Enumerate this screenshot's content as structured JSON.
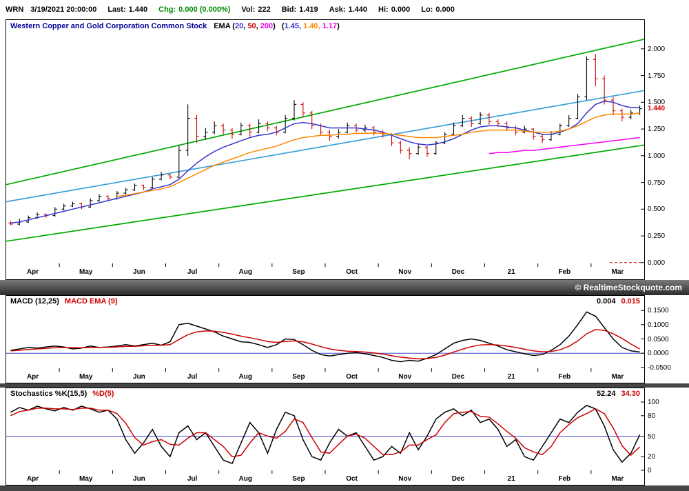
{
  "header": {
    "symbol": "WRN",
    "datetime": "3/19/2021 20:00:00",
    "fields": [
      {
        "key": "last",
        "label": "Last:",
        "value": "1.440",
        "color": "#000000"
      },
      {
        "key": "chg",
        "label": "Chg:",
        "value": "0.000 (0.000%)",
        "color": "#008800"
      },
      {
        "key": "vol",
        "label": "Vol:",
        "value": "222",
        "color": "#000000"
      },
      {
        "key": "bid",
        "label": "Bid:",
        "value": "1.419",
        "color": "#000000"
      },
      {
        "key": "ask",
        "label": "Ask:",
        "value": "1.440",
        "color": "#000000"
      },
      {
        "key": "hi",
        "label": "Hi:",
        "value": "0.000",
        "color": "#000000"
      },
      {
        "key": "lo",
        "label": "Lo:",
        "value": "0.000",
        "color": "#000000"
      }
    ]
  },
  "copyright": "© RealtimeStockquote.com",
  "months": [
    "Apr",
    "May",
    "Jun",
    "Jul",
    "Aug",
    "Sep",
    "Oct",
    "Nov",
    "Dec",
    "21",
    "Feb",
    "Mar"
  ],
  "colors": {
    "up": "#000000",
    "down": "#cc0000",
    "ref_blue": "#4444cc",
    "trend_green": "#00aa00",
    "trend_cyan": "#3b9fd9"
  },
  "chart_data": [
    {
      "type": "ohlc-candlestick",
      "title": "Western Copper and Gold Corporation Common Stock",
      "legend": {
        "label": "EMA",
        "periods": [
          "20",
          "50",
          "200"
        ],
        "period_colors": [
          "#3333cc",
          "#cc0000",
          "#ee00ee"
        ],
        "values": [
          "1.45",
          "1.40",
          "1.17"
        ],
        "value_colors": [
          "#3333cc",
          "#ff8800",
          "#ee00ee"
        ]
      },
      "ylim": [
        -0.04,
        2.16
      ],
      "y_ticks": [
        2.0,
        1.75,
        1.5,
        1.25,
        1.0,
        0.75,
        0.5,
        0.25,
        0.0
      ],
      "y_tick_labels": [
        "2.000",
        "1.750",
        "1.500",
        "1.250",
        "1.000",
        "0.750",
        "0.500",
        "0.250",
        "0.000"
      ],
      "last_price": 1.44,
      "last_price_label": "1.440",
      "candles": [
        [
          0.37,
          0.39,
          0.35,
          0.36
        ],
        [
          0.36,
          0.41,
          0.35,
          0.38
        ],
        [
          0.38,
          0.44,
          0.37,
          0.42
        ],
        [
          0.42,
          0.47,
          0.41,
          0.45
        ],
        [
          0.45,
          0.46,
          0.42,
          0.44
        ],
        [
          0.44,
          0.52,
          0.43,
          0.5
        ],
        [
          0.5,
          0.55,
          0.49,
          0.53
        ],
        [
          0.53,
          0.57,
          0.52,
          0.55
        ],
        [
          0.55,
          0.56,
          0.5,
          0.52
        ],
        [
          0.52,
          0.6,
          0.51,
          0.58
        ],
        [
          0.58,
          0.64,
          0.57,
          0.62
        ],
        [
          0.62,
          0.63,
          0.58,
          0.6
        ],
        [
          0.6,
          0.67,
          0.59,
          0.65
        ],
        [
          0.65,
          0.7,
          0.64,
          0.68
        ],
        [
          0.68,
          0.74,
          0.67,
          0.72
        ],
        [
          0.72,
          0.73,
          0.68,
          0.7
        ],
        [
          0.7,
          0.8,
          0.69,
          0.78
        ],
        [
          0.78,
          0.85,
          0.77,
          0.82
        ],
        [
          0.82,
          0.83,
          0.78,
          0.8
        ],
        [
          0.8,
          1.1,
          0.79,
          1.05
        ],
        [
          1.05,
          1.48,
          1.0,
          1.35
        ],
        [
          1.35,
          1.38,
          1.12,
          1.18
        ],
        [
          1.18,
          1.26,
          1.15,
          1.22
        ],
        [
          1.22,
          1.32,
          1.2,
          1.28
        ],
        [
          1.28,
          1.3,
          1.2,
          1.24
        ],
        [
          1.24,
          1.26,
          1.16,
          1.2
        ],
        [
          1.2,
          1.31,
          1.19,
          1.28
        ],
        [
          1.28,
          1.3,
          1.18,
          1.22
        ],
        [
          1.22,
          1.34,
          1.21,
          1.3
        ],
        [
          1.3,
          1.32,
          1.23,
          1.26
        ],
        [
          1.26,
          1.28,
          1.19,
          1.22
        ],
        [
          1.22,
          1.38,
          1.21,
          1.35
        ],
        [
          1.35,
          1.52,
          1.33,
          1.48
        ],
        [
          1.48,
          1.5,
          1.36,
          1.4
        ],
        [
          1.4,
          1.42,
          1.25,
          1.28
        ],
        [
          1.28,
          1.3,
          1.19,
          1.22
        ],
        [
          1.22,
          1.24,
          1.14,
          1.18
        ],
        [
          1.18,
          1.25,
          1.16,
          1.22
        ],
        [
          1.22,
          1.31,
          1.21,
          1.28
        ],
        [
          1.28,
          1.3,
          1.22,
          1.24
        ],
        [
          1.24,
          1.29,
          1.22,
          1.26
        ],
        [
          1.26,
          1.28,
          1.19,
          1.22
        ],
        [
          1.22,
          1.24,
          1.17,
          1.2
        ],
        [
          1.2,
          1.21,
          1.09,
          1.12
        ],
        [
          1.12,
          1.14,
          1.02,
          1.05
        ],
        [
          1.05,
          1.08,
          0.97,
          1.02
        ],
        [
          1.02,
          1.11,
          1.01,
          1.08
        ],
        [
          1.08,
          1.09,
          0.99,
          1.02
        ],
        [
          1.02,
          1.14,
          1.01,
          1.12
        ],
        [
          1.12,
          1.22,
          1.11,
          1.2
        ],
        [
          1.2,
          1.31,
          1.19,
          1.28
        ],
        [
          1.28,
          1.38,
          1.27,
          1.35
        ],
        [
          1.35,
          1.37,
          1.27,
          1.3
        ],
        [
          1.3,
          1.41,
          1.29,
          1.38
        ],
        [
          1.38,
          1.4,
          1.29,
          1.32
        ],
        [
          1.32,
          1.34,
          1.27,
          1.3
        ],
        [
          1.3,
          1.32,
          1.23,
          1.26
        ],
        [
          1.26,
          1.28,
          1.19,
          1.22
        ],
        [
          1.22,
          1.28,
          1.21,
          1.25
        ],
        [
          1.25,
          1.26,
          1.15,
          1.18
        ],
        [
          1.18,
          1.2,
          1.12,
          1.15
        ],
        [
          1.15,
          1.23,
          1.14,
          1.2
        ],
        [
          1.2,
          1.3,
          1.19,
          1.28
        ],
        [
          1.28,
          1.38,
          1.27,
          1.35
        ],
        [
          1.35,
          1.58,
          1.34,
          1.55
        ],
        [
          1.55,
          1.93,
          1.52,
          1.9
        ],
        [
          1.9,
          1.95,
          1.65,
          1.72
        ],
        [
          1.72,
          1.75,
          1.48,
          1.52
        ],
        [
          1.52,
          1.55,
          1.38,
          1.42
        ],
        [
          1.42,
          1.44,
          1.32,
          1.36
        ],
        [
          1.36,
          1.43,
          1.34,
          1.4
        ],
        [
          1.4,
          1.47,
          1.38,
          1.44
        ]
      ],
      "series": [
        {
          "name": "EMA 20",
          "color": "#3333cc",
          "start": 0,
          "values": [
            0.37,
            0.38,
            0.4,
            0.42,
            0.44,
            0.46,
            0.48,
            0.5,
            0.52,
            0.54,
            0.56,
            0.58,
            0.6,
            0.62,
            0.64,
            0.66,
            0.69,
            0.71,
            0.73,
            0.78,
            0.86,
            0.93,
            0.99,
            1.04,
            1.08,
            1.11,
            1.14,
            1.17,
            1.19,
            1.2,
            1.22,
            1.26,
            1.3,
            1.31,
            1.3,
            1.28,
            1.26,
            1.26,
            1.26,
            1.26,
            1.25,
            1.24,
            1.22,
            1.19,
            1.16,
            1.13,
            1.11,
            1.1,
            1.11,
            1.13,
            1.16,
            1.2,
            1.24,
            1.27,
            1.28,
            1.28,
            1.27,
            1.26,
            1.24,
            1.22,
            1.2,
            1.2,
            1.22,
            1.25,
            1.3,
            1.4,
            1.48,
            1.51,
            1.5,
            1.47,
            1.45,
            1.45
          ]
        },
        {
          "name": "EMA 50",
          "color": "#ff8800",
          "start": 12,
          "values": [
            0.62,
            0.63,
            0.645,
            0.66,
            0.675,
            0.69,
            0.71,
            0.75,
            0.79,
            0.83,
            0.87,
            0.91,
            0.94,
            0.97,
            1.0,
            1.03,
            1.05,
            1.07,
            1.09,
            1.12,
            1.15,
            1.17,
            1.18,
            1.19,
            1.19,
            1.2,
            1.2,
            1.21,
            1.21,
            1.21,
            1.21,
            1.2,
            1.19,
            1.18,
            1.17,
            1.17,
            1.17,
            1.18,
            1.19,
            1.2,
            1.22,
            1.23,
            1.24,
            1.24,
            1.24,
            1.24,
            1.23,
            1.22,
            1.22,
            1.22,
            1.23,
            1.25,
            1.28,
            1.32,
            1.36,
            1.38,
            1.39,
            1.39,
            1.39,
            1.4
          ]
        },
        {
          "name": "EMA 200",
          "color": "#ee00ee",
          "start": 54,
          "values": [
            1.02,
            1.03,
            1.03,
            1.04,
            1.05,
            1.05,
            1.06,
            1.07,
            1.08,
            1.09,
            1.1,
            1.11,
            1.12,
            1.13,
            1.14,
            1.15,
            1.16,
            1.17
          ]
        }
      ],
      "trendlines": [
        {
          "name": "upper-channel",
          "color": "#00aa00",
          "from": 0.73,
          "to": 2.09
        },
        {
          "name": "mid-trendline",
          "color": "#3b9fd9",
          "from": 0.57,
          "to": 1.61
        },
        {
          "name": "lower-channel",
          "color": "#00aa00",
          "from": 0.2,
          "to": 1.1
        }
      ]
    },
    {
      "type": "line",
      "title": "MACD (12,25)",
      "signal_title": "MACD EMA (9)",
      "value": "0.004",
      "signal_value": "0.015",
      "ylim": [
        -0.065,
        0.165
      ],
      "y_ticks": [
        0.15,
        0.1,
        0.05,
        0.0,
        -0.05
      ],
      "y_tick_labels": [
        "0.1500",
        "0.1000",
        "0.0500",
        "0.0000",
        "-0.0500"
      ],
      "ref_line": 0,
      "series": [
        {
          "name": "MACD",
          "color": "#000000",
          "start": 0,
          "values": [
            0.01,
            0.015,
            0.02,
            0.018,
            0.022,
            0.025,
            0.022,
            0.015,
            0.018,
            0.025,
            0.02,
            0.022,
            0.025,
            0.03,
            0.025,
            0.03,
            0.035,
            0.028,
            0.04,
            0.1,
            0.105,
            0.095,
            0.085,
            0.075,
            0.06,
            0.05,
            0.04,
            0.038,
            0.03,
            0.02,
            0.03,
            0.05,
            0.048,
            0.03,
            0.01,
            -0.005,
            -0.01,
            -0.005,
            0.0,
            0.002,
            -0.002,
            -0.008,
            -0.015,
            -0.025,
            -0.03,
            -0.025,
            -0.028,
            -0.018,
            -0.005,
            0.015,
            0.035,
            0.045,
            0.05,
            0.045,
            0.035,
            0.025,
            0.012,
            0.005,
            -0.002,
            -0.008,
            -0.005,
            0.01,
            0.03,
            0.06,
            0.1,
            0.145,
            0.13,
            0.09,
            0.05,
            0.02,
            0.008,
            0.004
          ]
        },
        {
          "name": "MACD EMA",
          "color": "#cc0000",
          "start": 0,
          "values": [
            0.008,
            0.01,
            0.013,
            0.015,
            0.017,
            0.019,
            0.02,
            0.019,
            0.019,
            0.02,
            0.02,
            0.021,
            0.022,
            0.024,
            0.024,
            0.026,
            0.028,
            0.028,
            0.03,
            0.048,
            0.065,
            0.075,
            0.078,
            0.077,
            0.073,
            0.067,
            0.06,
            0.054,
            0.048,
            0.041,
            0.038,
            0.041,
            0.043,
            0.04,
            0.032,
            0.023,
            0.015,
            0.01,
            0.007,
            0.006,
            0.004,
            0.001,
            -0.003,
            -0.009,
            -0.014,
            -0.017,
            -0.02,
            -0.019,
            -0.015,
            -0.007,
            0.004,
            0.014,
            0.023,
            0.029,
            0.03,
            0.029,
            0.025,
            0.02,
            0.014,
            0.008,
            0.005,
            0.006,
            0.012,
            0.024,
            0.043,
            0.068,
            0.083,
            0.08,
            0.068,
            0.052,
            0.032,
            0.015
          ]
        }
      ]
    },
    {
      "type": "line",
      "title": "Stochastics %K(15,5)",
      "signal_title": "%D(5)",
      "value": "52.24",
      "signal_value": "34.30",
      "ylim": [
        -5,
        105
      ],
      "y_ticks": [
        100,
        80,
        50,
        20,
        0
      ],
      "y_tick_labels": [
        "100",
        "80",
        "50",
        "20",
        "0"
      ],
      "ref_line": 50,
      "series": [
        {
          "name": "%K",
          "color": "#000000",
          "start": 0,
          "values": [
            85,
            92,
            88,
            94,
            90,
            87,
            92,
            88,
            94,
            90,
            85,
            88,
            75,
            45,
            25,
            40,
            60,
            35,
            20,
            55,
            65,
            45,
            55,
            35,
            15,
            10,
            40,
            70,
            55,
            25,
            60,
            85,
            80,
            45,
            20,
            15,
            40,
            60,
            50,
            55,
            35,
            15,
            20,
            35,
            25,
            55,
            30,
            50,
            75,
            85,
            90,
            80,
            88,
            70,
            75,
            60,
            35,
            45,
            20,
            15,
            35,
            55,
            75,
            70,
            85,
            95,
            90,
            65,
            30,
            12,
            25,
            52.24
          ]
        },
        {
          "name": "%D",
          "color": "#cc0000",
          "start": 0,
          "values": [
            80,
            86,
            88,
            91,
            91,
            90,
            90,
            89,
            91,
            91,
            88,
            88,
            83,
            69,
            48,
            37,
            42,
            45,
            38,
            37,
            47,
            55,
            55,
            45,
            35,
            20,
            22,
            40,
            55,
            50,
            47,
            57,
            75,
            70,
            48,
            27,
            25,
            38,
            50,
            53,
            47,
            35,
            23,
            23,
            27,
            37,
            37,
            45,
            52,
            70,
            83,
            85,
            86,
            79,
            78,
            68,
            57,
            47,
            33,
            27,
            23,
            35,
            55,
            67,
            77,
            83,
            90,
            83,
            62,
            36,
            22,
            34.3
          ]
        }
      ]
    }
  ]
}
